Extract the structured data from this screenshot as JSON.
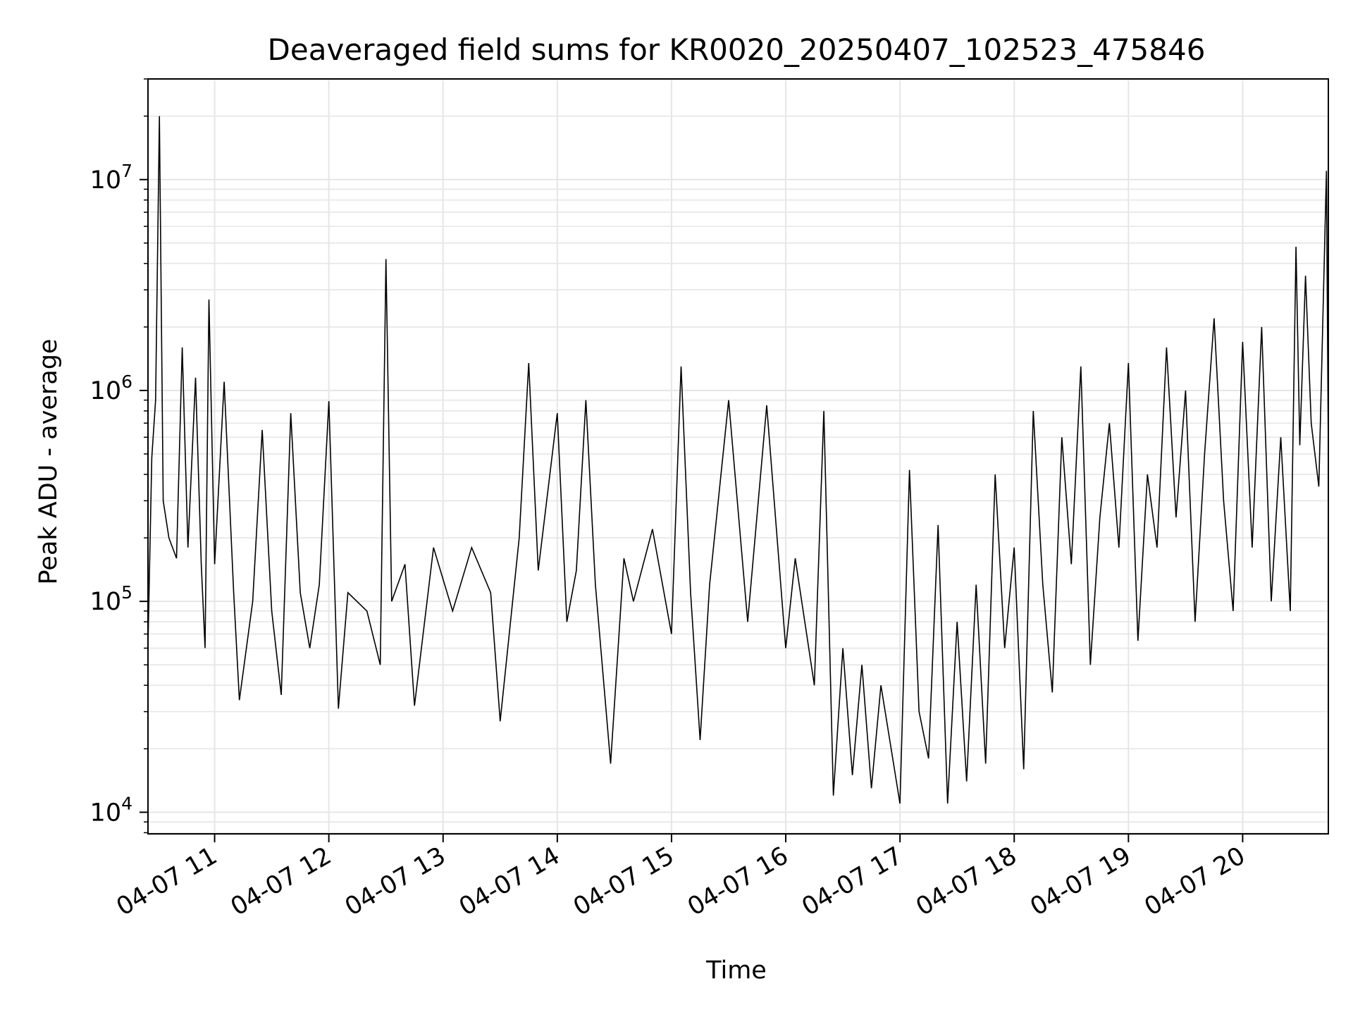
{
  "colors": {
    "series": "#000000",
    "grid": "#e6e6e6",
    "frame": "#000000",
    "background": "#ffffff"
  },
  "chart_data": {
    "type": "line",
    "title": "Deaveraged field sums for KR0020_20250407_102523_475846",
    "xlabel": "Time",
    "ylabel": "Peak ADU - average",
    "yscale": "log",
    "grid": true,
    "grid_minor": true,
    "legend": "none",
    "xlim": [
      "2025-04-07 10:25",
      "2025-04-07 20:45"
    ],
    "ylim": [
      7900,
      30000000
    ],
    "x_ticks": [
      {
        "label": "04-07 11",
        "value": "2025-04-07 11:00"
      },
      {
        "label": "04-07 12",
        "value": "2025-04-07 12:00"
      },
      {
        "label": "04-07 13",
        "value": "2025-04-07 13:00"
      },
      {
        "label": "04-07 14",
        "value": "2025-04-07 14:00"
      },
      {
        "label": "04-07 15",
        "value": "2025-04-07 15:00"
      },
      {
        "label": "04-07 16",
        "value": "2025-04-07 16:00"
      },
      {
        "label": "04-07 17",
        "value": "2025-04-07 17:00"
      },
      {
        "label": "04-07 18",
        "value": "2025-04-07 18:00"
      },
      {
        "label": "04-07 19",
        "value": "2025-04-07 19:00"
      },
      {
        "label": "04-07 20",
        "value": "2025-04-07 20:00"
      }
    ],
    "y_ticks": [
      {
        "base": "10",
        "exp": "4",
        "value": 10000
      },
      {
        "base": "10",
        "exp": "5",
        "value": 100000
      },
      {
        "base": "10",
        "exp": "6",
        "value": 1000000
      },
      {
        "base": "10",
        "exp": "7",
        "value": 10000000
      }
    ],
    "series": [
      {
        "color": "#000000",
        "points": [
          [
            "2025-04-07 10:25",
            62000
          ],
          [
            "2025-04-07 10:27",
            480000
          ],
          [
            "2025-04-07 10:29",
            900000
          ],
          [
            "2025-04-07 10:31",
            20000000
          ],
          [
            "2025-04-07 10:33",
            300000
          ],
          [
            "2025-04-07 10:36",
            200000
          ],
          [
            "2025-04-07 10:40",
            160000
          ],
          [
            "2025-04-07 10:43",
            1600000
          ],
          [
            "2025-04-07 10:46",
            180000
          ],
          [
            "2025-04-07 10:50",
            1150000
          ],
          [
            "2025-04-07 10:53",
            150000
          ],
          [
            "2025-04-07 10:55",
            60000
          ],
          [
            "2025-04-07 10:57",
            2700000
          ],
          [
            "2025-04-07 11:00",
            150000
          ],
          [
            "2025-04-07 11:05",
            1100000
          ],
          [
            "2025-04-07 11:10",
            110000
          ],
          [
            "2025-04-07 11:13",
            34000
          ],
          [
            "2025-04-07 11:20",
            100000
          ],
          [
            "2025-04-07 11:25",
            650000
          ],
          [
            "2025-04-07 11:30",
            90000
          ],
          [
            "2025-04-07 11:35",
            36000
          ],
          [
            "2025-04-07 11:40",
            780000
          ],
          [
            "2025-04-07 11:45",
            110000
          ],
          [
            "2025-04-07 11:50",
            60000
          ],
          [
            "2025-04-07 11:55",
            120000
          ],
          [
            "2025-04-07 12:00",
            890000
          ],
          [
            "2025-04-07 12:05",
            31000
          ],
          [
            "2025-04-07 12:10",
            110000
          ],
          [
            "2025-04-07 12:20",
            90000
          ],
          [
            "2025-04-07 12:27",
            50000
          ],
          [
            "2025-04-07 12:30",
            4200000
          ],
          [
            "2025-04-07 12:33",
            100000
          ],
          [
            "2025-04-07 12:40",
            150000
          ],
          [
            "2025-04-07 12:45",
            32000
          ],
          [
            "2025-04-07 12:55",
            180000
          ],
          [
            "2025-04-07 13:05",
            90000
          ],
          [
            "2025-04-07 13:15",
            180000
          ],
          [
            "2025-04-07 13:25",
            110000
          ],
          [
            "2025-04-07 13:30",
            27000
          ],
          [
            "2025-04-07 13:40",
            200000
          ],
          [
            "2025-04-07 13:45",
            1350000
          ],
          [
            "2025-04-07 13:50",
            140000
          ],
          [
            "2025-04-07 14:00",
            780000
          ],
          [
            "2025-04-07 14:05",
            80000
          ],
          [
            "2025-04-07 14:10",
            140000
          ],
          [
            "2025-04-07 14:15",
            900000
          ],
          [
            "2025-04-07 14:20",
            120000
          ],
          [
            "2025-04-07 14:28",
            17000
          ],
          [
            "2025-04-07 14:35",
            160000
          ],
          [
            "2025-04-07 14:40",
            100000
          ],
          [
            "2025-04-07 14:50",
            220000
          ],
          [
            "2025-04-07 15:00",
            70000
          ],
          [
            "2025-04-07 15:05",
            1300000
          ],
          [
            "2025-04-07 15:10",
            110000
          ],
          [
            "2025-04-07 15:15",
            22000
          ],
          [
            "2025-04-07 15:20",
            120000
          ],
          [
            "2025-04-07 15:30",
            900000
          ],
          [
            "2025-04-07 15:40",
            80000
          ],
          [
            "2025-04-07 15:50",
            850000
          ],
          [
            "2025-04-07 16:00",
            60000
          ],
          [
            "2025-04-07 16:05",
            160000
          ],
          [
            "2025-04-07 16:15",
            40000
          ],
          [
            "2025-04-07 16:20",
            800000
          ],
          [
            "2025-04-07 16:25",
            12000
          ],
          [
            "2025-04-07 16:30",
            60000
          ],
          [
            "2025-04-07 16:35",
            15000
          ],
          [
            "2025-04-07 16:40",
            50000
          ],
          [
            "2025-04-07 16:45",
            13000
          ],
          [
            "2025-04-07 16:50",
            40000
          ],
          [
            "2025-04-07 17:00",
            11000
          ],
          [
            "2025-04-07 17:05",
            420000
          ],
          [
            "2025-04-07 17:10",
            30000
          ],
          [
            "2025-04-07 17:15",
            18000
          ],
          [
            "2025-04-07 17:20",
            230000
          ],
          [
            "2025-04-07 17:25",
            11000
          ],
          [
            "2025-04-07 17:30",
            80000
          ],
          [
            "2025-04-07 17:35",
            14000
          ],
          [
            "2025-04-07 17:40",
            120000
          ],
          [
            "2025-04-07 17:45",
            17000
          ],
          [
            "2025-04-07 17:50",
            400000
          ],
          [
            "2025-04-07 17:55",
            60000
          ],
          [
            "2025-04-07 18:00",
            180000
          ],
          [
            "2025-04-07 18:05",
            16000
          ],
          [
            "2025-04-07 18:10",
            800000
          ],
          [
            "2025-04-07 18:15",
            120000
          ],
          [
            "2025-04-07 18:20",
            37000
          ],
          [
            "2025-04-07 18:25",
            600000
          ],
          [
            "2025-04-07 18:30",
            150000
          ],
          [
            "2025-04-07 18:35",
            1300000
          ],
          [
            "2025-04-07 18:40",
            50000
          ],
          [
            "2025-04-07 18:45",
            250000
          ],
          [
            "2025-04-07 18:50",
            700000
          ],
          [
            "2025-04-07 18:55",
            180000
          ],
          [
            "2025-04-07 19:00",
            1350000
          ],
          [
            "2025-04-07 19:05",
            65000
          ],
          [
            "2025-04-07 19:10",
            400000
          ],
          [
            "2025-04-07 19:15",
            180000
          ],
          [
            "2025-04-07 19:20",
            1600000
          ],
          [
            "2025-04-07 19:25",
            250000
          ],
          [
            "2025-04-07 19:30",
            1000000
          ],
          [
            "2025-04-07 19:35",
            80000
          ],
          [
            "2025-04-07 19:40",
            500000
          ],
          [
            "2025-04-07 19:45",
            2200000
          ],
          [
            "2025-04-07 19:50",
            300000
          ],
          [
            "2025-04-07 19:55",
            90000
          ],
          [
            "2025-04-07 20:00",
            1700000
          ],
          [
            "2025-04-07 20:05",
            180000
          ],
          [
            "2025-04-07 20:10",
            2000000
          ],
          [
            "2025-04-07 20:15",
            100000
          ],
          [
            "2025-04-07 20:20",
            600000
          ],
          [
            "2025-04-07 20:25",
            90000
          ],
          [
            "2025-04-07 20:28",
            4800000
          ],
          [
            "2025-04-07 20:30",
            550000
          ],
          [
            "2025-04-07 20:33",
            3500000
          ],
          [
            "2025-04-07 20:36",
            700000
          ],
          [
            "2025-04-07 20:40",
            350000
          ],
          [
            "2025-04-07 20:44",
            11000000
          ],
          [
            "2025-04-07 20:45",
            500000
          ]
        ]
      }
    ]
  }
}
